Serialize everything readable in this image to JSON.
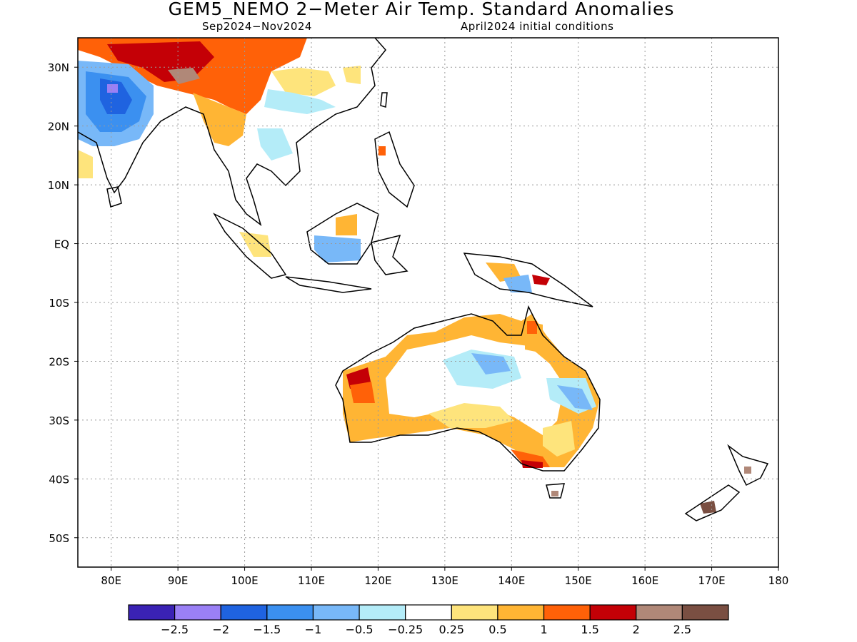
{
  "title": "GEM5_NEMO 2−Meter Air Temp. Standard Anomalies",
  "subtitle_left": "Sep2024−Nov2024",
  "subtitle_right": "April2024 initial conditions",
  "map": {
    "lon_range": [
      75,
      180
    ],
    "lat_range": [
      -55,
      35
    ],
    "lat_ticks": [
      "30N",
      "20N",
      "10N",
      "EQ",
      "10S",
      "20S",
      "30S",
      "40S",
      "50S"
    ],
    "lon_ticks": [
      "80E",
      "90E",
      "100E",
      "110E",
      "120E",
      "130E",
      "140E",
      "150E",
      "160E",
      "170E",
      "180"
    ],
    "grid": "dotted"
  },
  "colorbar": {
    "colors": [
      "#3a22b4",
      "#9a80f5",
      "#1f63e0",
      "#3b90f0",
      "#78b8f8",
      "#b4ecf8",
      "#ffffff",
      "#fee47c",
      "#ffb534",
      "#ff6108",
      "#c40006",
      "#b08878",
      "#7a4f42"
    ],
    "labels": [
      "−2.5",
      "−2",
      "−1.5",
      "−1",
      "−0.5",
      "−0.25",
      "0.25",
      "0.5",
      "1",
      "1.5",
      "2",
      "2.5"
    ]
  }
}
